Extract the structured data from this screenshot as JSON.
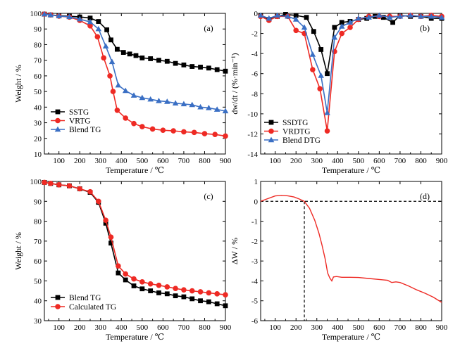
{
  "colors": {
    "black": "#000000",
    "red": "#ee2a24",
    "blue": "#3a6fc4"
  },
  "chart_data": [
    {
      "id": "a",
      "type": "line",
      "panel_label": "(a)",
      "xlabel": "Temperature / ℃",
      "ylabel": "Weight / %",
      "xlim": [
        30,
        900
      ],
      "ylim": [
        10,
        100
      ],
      "xticks": [
        100,
        200,
        300,
        400,
        500,
        600,
        700,
        800,
        900
      ],
      "yticks": [
        10,
        20,
        30,
        40,
        50,
        60,
        70,
        80,
        90,
        100
      ],
      "grid": false,
      "legend_position": "bottom-left",
      "series": [
        {
          "name": "SSTG",
          "color": "black",
          "marker": "square",
          "points": [
            [
              30,
              99.5
            ],
            [
              60,
              99
            ],
            [
              100,
              98.5
            ],
            [
              150,
              98.2
            ],
            [
              200,
              97.7
            ],
            [
              250,
              97
            ],
            [
              290,
              94.8
            ],
            [
              330,
              89.5
            ],
            [
              350,
              83
            ],
            [
              380,
              77
            ],
            [
              410,
              75
            ],
            [
              440,
              74
            ],
            [
              470,
              73
            ],
            [
              500,
              71.5
            ],
            [
              540,
              71
            ],
            [
              580,
              70
            ],
            [
              620,
              69.3
            ],
            [
              660,
              68
            ],
            [
              700,
              67
            ],
            [
              740,
              66
            ],
            [
              780,
              65.6
            ],
            [
              820,
              65
            ],
            [
              860,
              64
            ],
            [
              900,
              63
            ]
          ]
        },
        {
          "name": "VRTG",
          "color": "red",
          "marker": "circle",
          "points": [
            [
              30,
              99.5
            ],
            [
              60,
              99
            ],
            [
              100,
              98.2
            ],
            [
              150,
              97.6
            ],
            [
              200,
              95.5
            ],
            [
              250,
              92
            ],
            [
              285,
              85
            ],
            [
              315,
              71.5
            ],
            [
              345,
              60
            ],
            [
              360,
              50
            ],
            [
              380,
              38
            ],
            [
              420,
              33
            ],
            [
              460,
              29.5
            ],
            [
              500,
              27.5
            ],
            [
              550,
              26
            ],
            [
              600,
              25.2
            ],
            [
              650,
              24.8
            ],
            [
              700,
              24.2
            ],
            [
              750,
              23.8
            ],
            [
              800,
              23
            ],
            [
              850,
              22.5
            ],
            [
              900,
              21.5
            ]
          ]
        },
        {
          "name": "Blend TG",
          "color": "blue",
          "marker": "triangle",
          "points": [
            [
              30,
              99.5
            ],
            [
              60,
              99
            ],
            [
              100,
              98.3
            ],
            [
              150,
              97.8
            ],
            [
              200,
              96.3
            ],
            [
              250,
              94.5
            ],
            [
              290,
              90
            ],
            [
              325,
              79
            ],
            [
              355,
              69
            ],
            [
              385,
              54
            ],
            [
              420,
              50.5
            ],
            [
              460,
              47.5
            ],
            [
              500,
              46
            ],
            [
              540,
              45
            ],
            [
              580,
              44
            ],
            [
              620,
              43.5
            ],
            [
              660,
              42.5
            ],
            [
              700,
              42
            ],
            [
              740,
              41.5
            ],
            [
              780,
              40
            ],
            [
              820,
              39.5
            ],
            [
              860,
              38.5
            ],
            [
              900,
              37.5
            ]
          ]
        }
      ]
    },
    {
      "id": "b",
      "type": "line",
      "panel_label": "(b)",
      "xlabel": "Temperature / ℃",
      "ylabel": "dw/dt / (%·min⁻¹)",
      "xlim": [
        30,
        900
      ],
      "ylim": [
        -14,
        0
      ],
      "xticks": [
        100,
        200,
        300,
        400,
        500,
        600,
        700,
        800,
        900
      ],
      "yticks": [
        0,
        -2,
        -4,
        -6,
        -8,
        -10,
        -12,
        -14
      ],
      "grid": false,
      "legend_position": "bottom-left",
      "series": [
        {
          "name": "SSDTG",
          "color": "black",
          "marker": "square",
          "points": [
            [
              30,
              -0.2
            ],
            [
              70,
              -0.6
            ],
            [
              110,
              -0.3
            ],
            [
              150,
              -0.1
            ],
            [
              200,
              -0.2
            ],
            [
              250,
              -0.4
            ],
            [
              285,
              -1.8
            ],
            [
              320,
              -3.6
            ],
            [
              350,
              -6
            ],
            [
              385,
              -1.4
            ],
            [
              420,
              -0.9
            ],
            [
              460,
              -0.8
            ],
            [
              500,
              -0.6
            ],
            [
              540,
              -0.5
            ],
            [
              580,
              -0.3
            ],
            [
              620,
              -0.4
            ],
            [
              665,
              -0.9
            ],
            [
              700,
              -0.2
            ],
            [
              750,
              -0.3
            ],
            [
              800,
              -0.3
            ],
            [
              850,
              -0.5
            ],
            [
              900,
              -0.5
            ]
          ]
        },
        {
          "name": "VRDTG",
          "color": "red",
          "marker": "circle",
          "points": [
            [
              30,
              -0.3
            ],
            [
              70,
              -0.7
            ],
            [
              110,
              -0.3
            ],
            [
              160,
              -0.3
            ],
            [
              200,
              -1.7
            ],
            [
              240,
              -2
            ],
            [
              280,
              -5.6
            ],
            [
              315,
              -7.5
            ],
            [
              350,
              -11.7
            ],
            [
              385,
              -3.8
            ],
            [
              420,
              -2
            ],
            [
              460,
              -1.4
            ],
            [
              500,
              -0.6
            ],
            [
              550,
              -0.3
            ],
            [
              600,
              -0.3
            ],
            [
              650,
              -0.3
            ],
            [
              700,
              -0.3
            ],
            [
              750,
              -0.2
            ],
            [
              800,
              -0.3
            ],
            [
              850,
              -0.2
            ],
            [
              900,
              -0.3
            ]
          ]
        },
        {
          "name": "Blend DTG",
          "color": "blue",
          "marker": "triangle",
          "points": [
            [
              30,
              -0.2
            ],
            [
              70,
              -0.5
            ],
            [
              110,
              -0.2
            ],
            [
              160,
              -0.3
            ],
            [
              200,
              -0.6
            ],
            [
              240,
              -1.4
            ],
            [
              280,
              -4.1
            ],
            [
              320,
              -6.2
            ],
            [
              350,
              -9.9
            ],
            [
              385,
              -2.4
            ],
            [
              420,
              -1.3
            ],
            [
              460,
              -0.9
            ],
            [
              500,
              -0.5
            ],
            [
              550,
              -0.4
            ],
            [
              600,
              -0.2
            ],
            [
              650,
              -0.4
            ],
            [
              700,
              -0.3
            ],
            [
              750,
              -0.2
            ],
            [
              800,
              -0.3
            ],
            [
              850,
              -0.3
            ],
            [
              900,
              -0.4
            ]
          ]
        }
      ]
    },
    {
      "id": "c",
      "type": "line",
      "panel_label": "(c)",
      "xlabel": "Temperature / ℃",
      "ylabel": "Weight / %",
      "xlim": [
        30,
        900
      ],
      "ylim": [
        30,
        100
      ],
      "xticks": [
        100,
        200,
        300,
        400,
        500,
        600,
        700,
        800,
        900
      ],
      "yticks": [
        30,
        40,
        50,
        60,
        70,
        80,
        90,
        100
      ],
      "grid": false,
      "legend_position": "bottom-left",
      "series": [
        {
          "name": "Blend TG",
          "color": "black",
          "marker": "square",
          "points": [
            [
              30,
              99.5
            ],
            [
              60,
              99
            ],
            [
              100,
              98.3
            ],
            [
              150,
              97.8
            ],
            [
              200,
              96.3
            ],
            [
              250,
              94.5
            ],
            [
              290,
              89.5
            ],
            [
              325,
              79
            ],
            [
              350,
              69
            ],
            [
              385,
              54
            ],
            [
              420,
              50.5
            ],
            [
              460,
              47.5
            ],
            [
              500,
              46
            ],
            [
              540,
              45
            ],
            [
              580,
              44
            ],
            [
              620,
              43.5
            ],
            [
              660,
              42.5
            ],
            [
              700,
              42
            ],
            [
              740,
              41
            ],
            [
              780,
              40
            ],
            [
              820,
              39.5
            ],
            [
              860,
              38.5
            ],
            [
              900,
              37.5
            ]
          ]
        },
        {
          "name": "Calculated TG",
          "color": "red",
          "marker": "circle",
          "points": [
            [
              30,
              99.5
            ],
            [
              60,
              99
            ],
            [
              100,
              98.3
            ],
            [
              150,
              97.8
            ],
            [
              200,
              96.3
            ],
            [
              250,
              94.8
            ],
            [
              290,
              90
            ],
            [
              325,
              80.5
            ],
            [
              350,
              72
            ],
            [
              385,
              57.5
            ],
            [
              420,
              53.5
            ],
            [
              460,
              51
            ],
            [
              500,
              49.5
            ],
            [
              540,
              48.5
            ],
            [
              580,
              47.8
            ],
            [
              620,
              47
            ],
            [
              660,
              46.2
            ],
            [
              700,
              45.5
            ],
            [
              740,
              45
            ],
            [
              780,
              44.5
            ],
            [
              820,
              44
            ],
            [
              860,
              43.5
            ],
            [
              900,
              43
            ]
          ]
        }
      ]
    },
    {
      "id": "d",
      "type": "line",
      "panel_label": "(d)",
      "xlabel": "Temperature / ℃",
      "ylabel": "ΔW / %",
      "xlim": [
        30,
        900
      ],
      "ylim": [
        -6,
        1
      ],
      "xticks": [
        100,
        200,
        300,
        400,
        500,
        600,
        700,
        800,
        900
      ],
      "yticks": [
        1,
        0,
        -1,
        -2,
        -3,
        -4,
        -5,
        -6
      ],
      "grid": false,
      "reference_lines": {
        "zero_line_y": 0,
        "crossing_x": 240
      },
      "series": [
        {
          "name": "",
          "color": "red",
          "marker": "none",
          "points": [
            [
              30,
              0
            ],
            [
              60,
              0.12
            ],
            [
              100,
              0.27
            ],
            [
              130,
              0.3
            ],
            [
              160,
              0.28
            ],
            [
              190,
              0.22
            ],
            [
              215,
              0.12
            ],
            [
              240,
              0
            ],
            [
              265,
              -0.35
            ],
            [
              290,
              -0.95
            ],
            [
              310,
              -1.6
            ],
            [
              325,
              -2.2
            ],
            [
              340,
              -2.9
            ],
            [
              352,
              -3.6
            ],
            [
              362,
              -3.85
            ],
            [
              372,
              -4
            ],
            [
              380,
              -3.8
            ],
            [
              395,
              -3.78
            ],
            [
              420,
              -3.82
            ],
            [
              460,
              -3.82
            ],
            [
              500,
              -3.83
            ],
            [
              550,
              -3.88
            ],
            [
              600,
              -3.93
            ],
            [
              640,
              -3.97
            ],
            [
              660,
              -4.08
            ],
            [
              680,
              -4.05
            ],
            [
              700,
              -4.08
            ],
            [
              740,
              -4.25
            ],
            [
              780,
              -4.45
            ],
            [
              820,
              -4.62
            ],
            [
              860,
              -4.82
            ],
            [
              900,
              -5.08
            ]
          ]
        }
      ]
    }
  ]
}
